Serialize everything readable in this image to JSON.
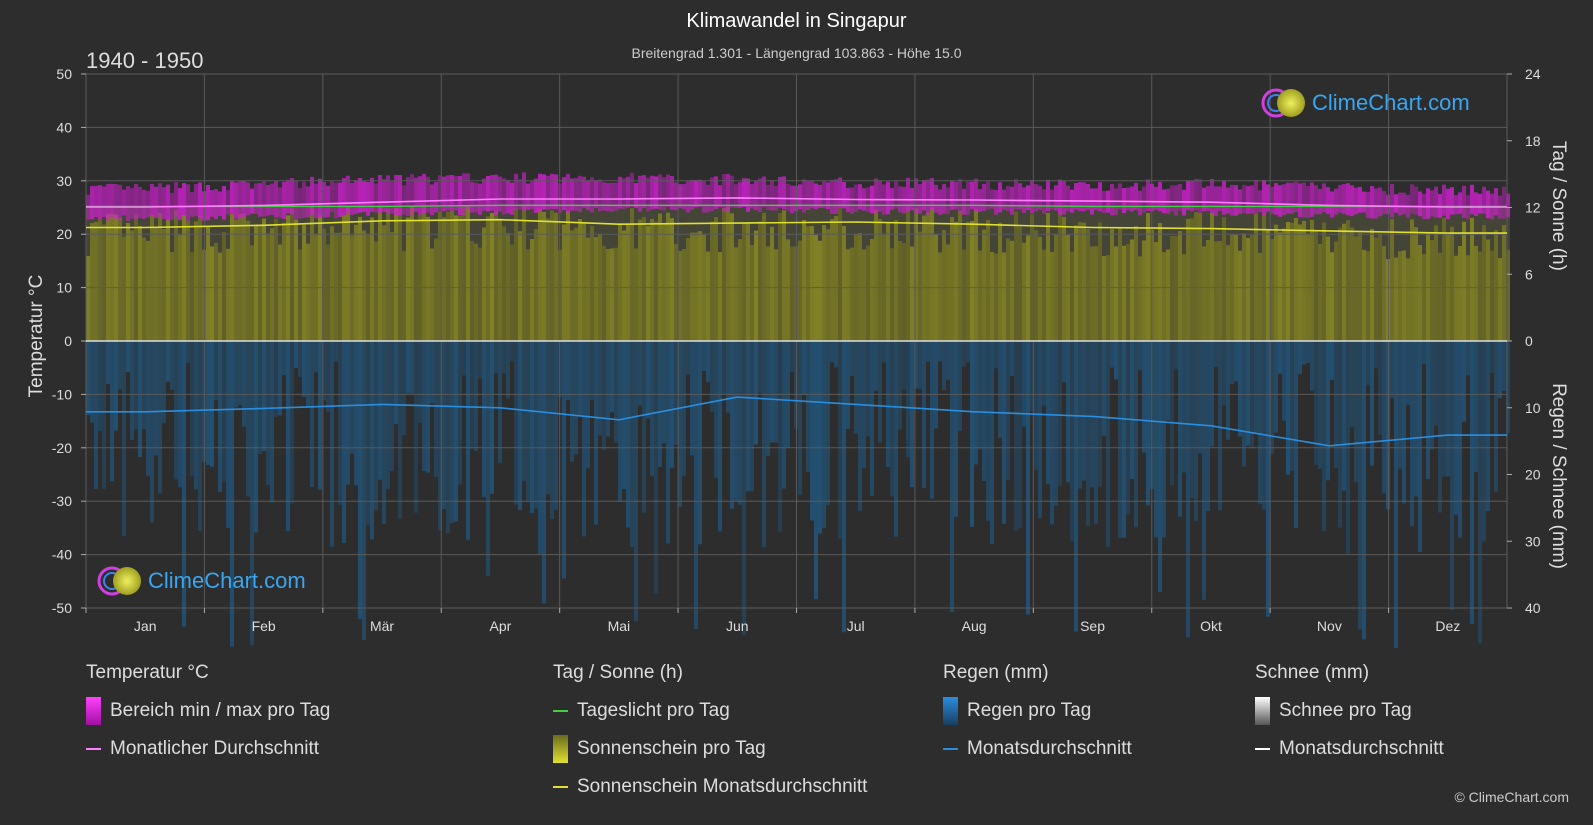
{
  "header": {
    "title": "Klimawandel in Singapur",
    "subtitle": "Breitengrad 1.301 - Längengrad 103.863 - Höhe 15.0",
    "period": "1940 - 1950"
  },
  "axes": {
    "left_title": "Temperatur °C",
    "right_top_title": "Tag / Sonne (h)",
    "right_bottom_title": "Regen / Schnee (mm)"
  },
  "logo": {
    "text": "ClimeChart.com"
  },
  "copyright": "© ClimeChart.com",
  "legend": {
    "temperature": {
      "head": "Temperatur °C",
      "range_label": "Bereich min / max pro Tag",
      "avg_label": "Monatlicher Durchschnitt"
    },
    "sun": {
      "head": "Tag / Sonne (h)",
      "daylight_label": "Tageslicht pro Tag",
      "sunshine_label": "Sonnenschein pro Tag",
      "sunshine_avg_label": "Sonnenschein Monatsdurchschnitt"
    },
    "rain": {
      "head": "Regen (mm)",
      "rain_label": "Regen pro Tag",
      "avg_label": "Monatsdurchschnitt"
    },
    "snow": {
      "head": "Schnee (mm)",
      "snow_label": "Schnee pro Tag",
      "avg_label": "Monatsdurchschnitt"
    }
  },
  "colors": {
    "background": "#2d2d2d",
    "temp_range": "#d020d0",
    "temp_avg": "#ff80ff",
    "daylight": "#40d040",
    "sunshine_fill": "#8a8a25",
    "sunshine_avg": "#e0e030",
    "rain_fill": "#1f5f8f",
    "rain_avg": "#2a8ee0",
    "snow_avg": "#ffffff"
  },
  "chart_data": {
    "type": "area",
    "categories": [
      "Jan",
      "Feb",
      "Mär",
      "Apr",
      "Mai",
      "Jun",
      "Jul",
      "Aug",
      "Sep",
      "Okt",
      "Nov",
      "Dez"
    ],
    "left_axis": {
      "label": "Temperatur °C",
      "ylim": [
        -50,
        50
      ],
      "ticks": [
        50,
        40,
        30,
        20,
        10,
        0,
        -10,
        -20,
        -30,
        -40,
        -50
      ]
    },
    "right_top_axis": {
      "label": "Tag / Sonne (h)",
      "ylim": [
        0,
        24
      ],
      "ticks": [
        24,
        18,
        12,
        6,
        0
      ]
    },
    "right_bottom_axis": {
      "label": "Regen / Schnee (mm)",
      "ylim": [
        0,
        40
      ],
      "ticks": [
        0,
        10,
        20,
        30,
        40
      ]
    },
    "series": [
      {
        "name": "Monatlicher Durchschnitt",
        "axis": "temperature",
        "values": [
          25.1,
          25.4,
          26.0,
          26.6,
          26.6,
          26.8,
          26.5,
          26.4,
          26.2,
          26.0,
          25.4,
          25.1
        ]
      },
      {
        "name": "Bereich min / max pro Tag (max)",
        "axis": "temperature",
        "values": [
          28.5,
          29.3,
          30.2,
          30.5,
          30.5,
          30.2,
          29.6,
          29.4,
          29.2,
          29.3,
          28.8,
          28.2
        ]
      },
      {
        "name": "Bereich min / max pro Tag (min)",
        "axis": "temperature",
        "values": [
          23.0,
          23.3,
          23.7,
          24.2,
          24.5,
          24.6,
          24.3,
          24.2,
          24.1,
          24.0,
          23.6,
          23.3
        ]
      },
      {
        "name": "Tageslicht pro Tag",
        "axis": "sun_hours",
        "values": [
          12.1,
          12.1,
          12.1,
          12.2,
          12.2,
          12.2,
          12.2,
          12.2,
          12.1,
          12.1,
          12.1,
          12.1
        ]
      },
      {
        "name": "Sonnenschein Monatsdurchschnitt",
        "axis": "sun_hours",
        "values": [
          10.2,
          10.4,
          10.8,
          10.9,
          10.5,
          10.6,
          10.7,
          10.5,
          10.2,
          10.1,
          9.9,
          9.7
        ]
      },
      {
        "name": "Regen Monatsdurchschnitt",
        "axis": "rain_mm",
        "values": [
          10.6,
          10.1,
          9.5,
          10.0,
          11.8,
          8.4,
          9.5,
          10.6,
          11.3,
          12.7,
          15.7,
          14.1
        ]
      },
      {
        "name": "Schnee Monatsdurchschnitt",
        "axis": "rain_mm",
        "values": [
          0,
          0,
          0,
          0,
          0,
          0,
          0,
          0,
          0,
          0,
          0,
          0
        ]
      }
    ]
  }
}
